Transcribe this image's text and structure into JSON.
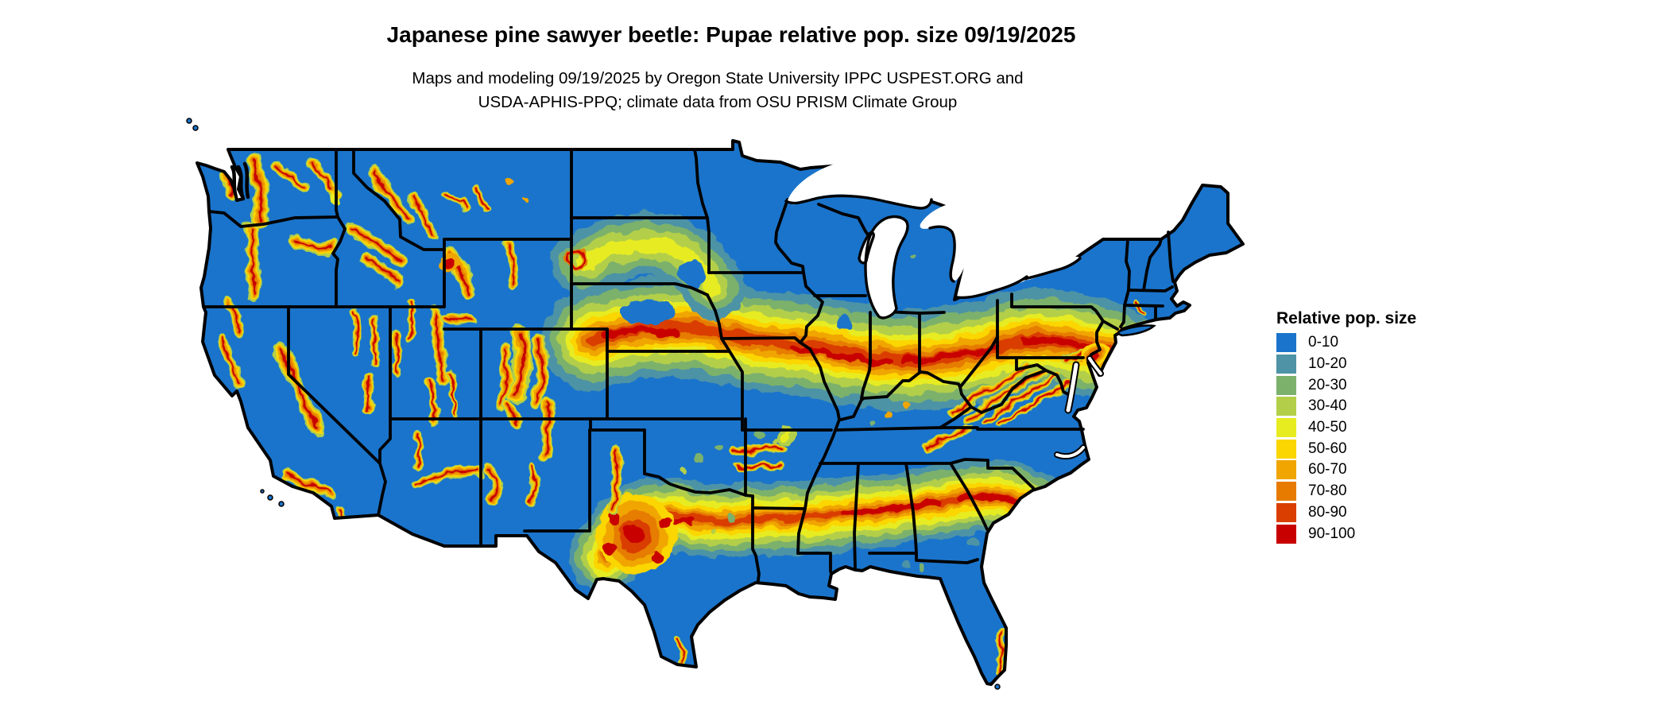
{
  "header": {
    "title": "Japanese pine sawyer beetle: Pupae relative pop. size 09/19/2025",
    "subtitle_line1": "Maps and modeling 09/19/2025 by Oregon State University IPPC USPEST.ORG and",
    "subtitle_line2": "USDA-APHIS-PPQ; climate data from OSU PRISM Climate Group"
  },
  "legend": {
    "title": "Relative pop. size",
    "items": [
      {
        "label": "0-10",
        "color": "#1a74cb"
      },
      {
        "label": "10-20",
        "color": "#4e93a6"
      },
      {
        "label": "20-30",
        "color": "#7cb16c"
      },
      {
        "label": "30-40",
        "color": "#b3cf4a"
      },
      {
        "label": "40-50",
        "color": "#e7ec21"
      },
      {
        "label": "50-60",
        "color": "#fbd600"
      },
      {
        "label": "60-70",
        "color": "#f0a500"
      },
      {
        "label": "70-80",
        "color": "#e67b00"
      },
      {
        "label": "80-90",
        "color": "#da3e00"
      },
      {
        "label": "90-100",
        "color": "#c80000"
      }
    ]
  },
  "map": {
    "land_color": "#1a74cb",
    "border_color": "#000000",
    "water_color": "#ffffff"
  }
}
